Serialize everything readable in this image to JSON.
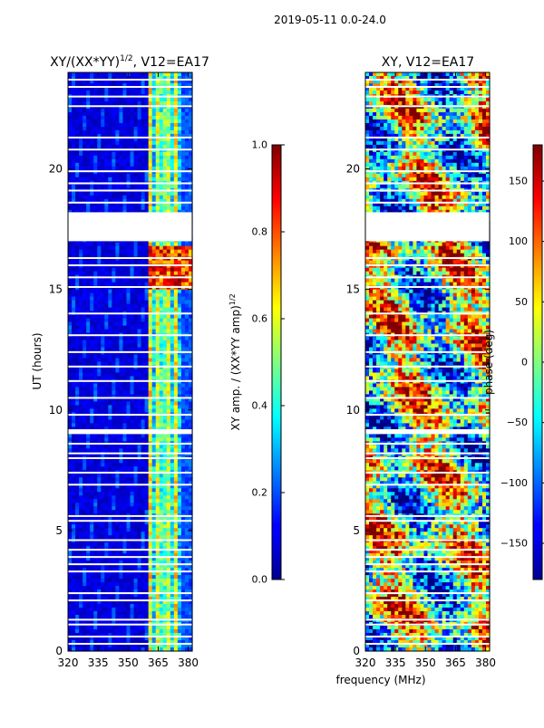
{
  "figure_title": "2019-05-11 0.0-24.0",
  "chart_data": [
    {
      "type": "heatmap",
      "title_text": "XY/(XX*YY)",
      "title_exp": "1/2",
      "title_suffix": ", V12=EA17",
      "xlabel": "",
      "ylabel": "UT (hours)",
      "xlim": [
        320,
        382
      ],
      "ylim": [
        0,
        24
      ],
      "xticks": [
        320,
        335,
        350,
        365,
        380
      ],
      "yticks": [
        0,
        5,
        10,
        15,
        20
      ],
      "colorbar": {
        "label_text": "XY amp. / (XX*YY amp)",
        "label_exp": "1/2",
        "vmin": 0.0,
        "vmax": 1.0,
        "ticks": [
          "0.0",
          "0.2",
          "0.4",
          "0.6",
          "0.8",
          "1.0"
        ],
        "tick_values": [
          0.0,
          0.2,
          0.4,
          0.6,
          0.8,
          1.0
        ]
      },
      "flagged_ut_ranges": [
        [
          17.0,
          18.2
        ],
        [
          9.0,
          9.2
        ]
      ]
    },
    {
      "type": "heatmap",
      "title_text": "XY, V12=EA17",
      "title_exp": "",
      "title_suffix": "",
      "xlabel": "frequency (MHz)",
      "ylabel": "",
      "xlim": [
        320,
        382
      ],
      "ylim": [
        0,
        24
      ],
      "xticks": [
        320,
        335,
        350,
        365,
        380
      ],
      "yticks": [
        0,
        5,
        10,
        15,
        20
      ],
      "colorbar": {
        "label_text": "phase (deg)",
        "label_exp": "",
        "vmin": -180,
        "vmax": 180,
        "ticks": [
          "−150",
          "−100",
          "−50",
          "0",
          "50",
          "100",
          "150"
        ],
        "tick_values": [
          -150,
          -100,
          -50,
          0,
          50,
          100,
          150
        ]
      },
      "flagged_ut_ranges": [
        [
          17.0,
          18.2
        ],
        [
          9.0,
          9.2
        ]
      ]
    }
  ]
}
